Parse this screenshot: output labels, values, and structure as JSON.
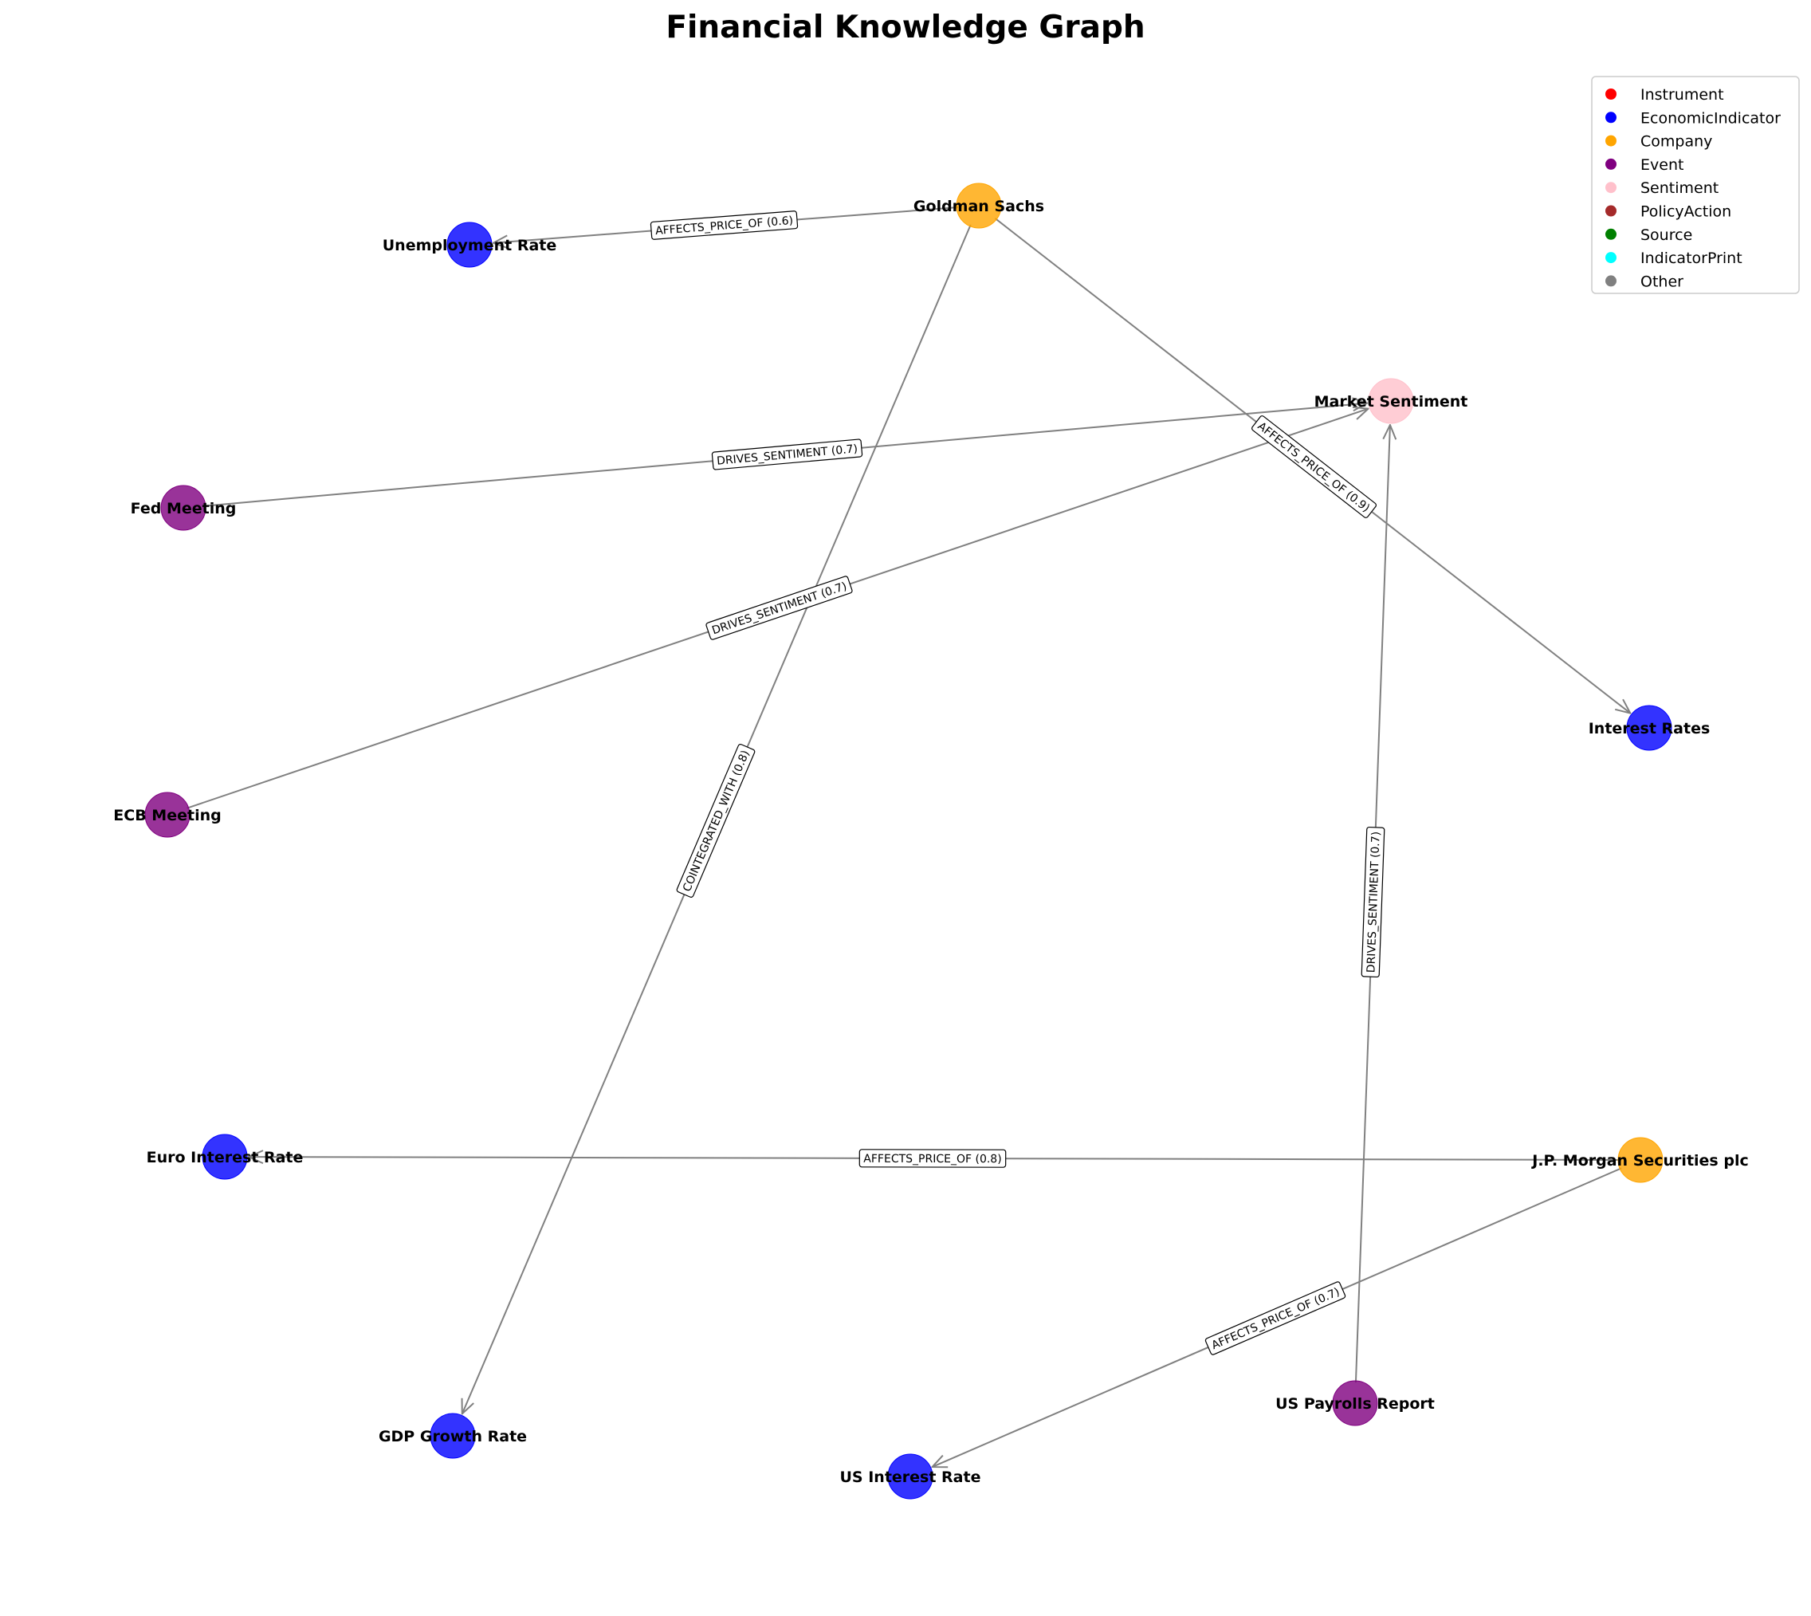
{
  "title": "Financial Knowledge Graph",
  "legend": [
    {
      "label": "Instrument",
      "color": "#ff0000"
    },
    {
      "label": "EconomicIndicator",
      "color": "#0000ff"
    },
    {
      "label": "Company",
      "color": "#ffa500"
    },
    {
      "label": "Event",
      "color": "#800080"
    },
    {
      "label": "Sentiment",
      "color": "#ffc0cb"
    },
    {
      "label": "PolicyAction",
      "color": "#a52a2a"
    },
    {
      "label": "Source",
      "color": "#008000"
    },
    {
      "label": "IndicatorPrint",
      "color": "#00ffff"
    },
    {
      "label": "Other",
      "color": "#808080"
    }
  ],
  "nodes": [
    {
      "id": "goldman",
      "label": "Goldman Sachs",
      "type": "Company"
    },
    {
      "id": "unemployment",
      "label": "Unemployment Rate",
      "type": "EconomicIndicator"
    },
    {
      "id": "sentiment",
      "label": "Market Sentiment",
      "type": "Sentiment"
    },
    {
      "id": "fed",
      "label": "Fed Meeting",
      "type": "Event"
    },
    {
      "id": "interest",
      "label": "Interest Rates",
      "type": "EconomicIndicator"
    },
    {
      "id": "ecb",
      "label": "ECB Meeting",
      "type": "Event"
    },
    {
      "id": "euro",
      "label": "Euro Interest Rate",
      "type": "EconomicIndicator"
    },
    {
      "id": "jpm",
      "label": "J.P. Morgan Securities plc",
      "type": "Company"
    },
    {
      "id": "payrolls",
      "label": "US Payrolls Report",
      "type": "Event"
    },
    {
      "id": "gdp",
      "label": "GDP Growth Rate",
      "type": "EconomicIndicator"
    },
    {
      "id": "usrate",
      "label": "US Interest Rate",
      "type": "EconomicIndicator"
    }
  ],
  "edges": [
    {
      "source": "goldman",
      "target": "unemployment",
      "label": "AFFECTS_PRICE_OF (0.6)"
    },
    {
      "source": "goldman",
      "target": "interest",
      "label": "AFFECTS_PRICE_OF (0.9)"
    },
    {
      "source": "goldman",
      "target": "gdp",
      "label": "COINTEGRATED_WITH (0.8)"
    },
    {
      "source": "fed",
      "target": "sentiment",
      "label": "DRIVES_SENTIMENT (0.7)"
    },
    {
      "source": "ecb",
      "target": "sentiment",
      "label": "DRIVES_SENTIMENT (0.7)"
    },
    {
      "source": "payrolls",
      "target": "sentiment",
      "label": "DRIVES_SENTIMENT (0.7)"
    },
    {
      "source": "jpm",
      "target": "euro",
      "label": "AFFECTS_PRICE_OF (0.8)"
    },
    {
      "source": "jpm",
      "target": "usrate",
      "label": "AFFECTS_PRICE_OF (0.7)"
    }
  ]
}
